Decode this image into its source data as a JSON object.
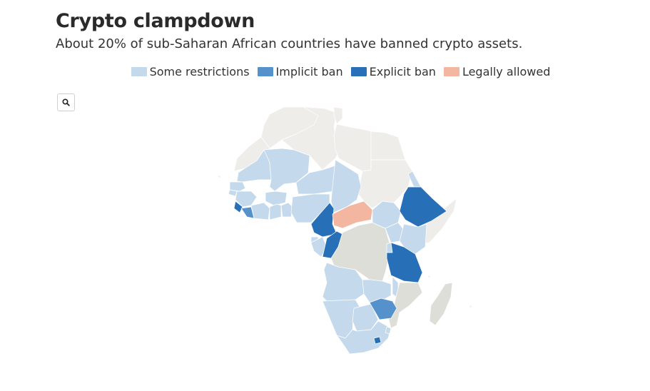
{
  "title": "Crypto clampdown",
  "subtitle": "About 20% of sub-Saharan African countries have banned crypto assets.",
  "legend": [
    {
      "label": "Some restrictions",
      "color": "#c4d9ec"
    },
    {
      "label": "Implicit ban",
      "color": "#5592cb"
    },
    {
      "label": "Explicit ban",
      "color": "#2770b7"
    },
    {
      "label": "Legally allowed",
      "color": "#f3b6a1"
    }
  ],
  "colors": {
    "some_restrictions": "#c4d9ec",
    "implicit_ban": "#5592cb",
    "explicit_ban": "#2770b7",
    "legally_allowed": "#f3b6a1",
    "no_data": "#deded8",
    "outside_scope": "#eeede9"
  },
  "zoom_button": {
    "icon": "search-icon"
  }
}
